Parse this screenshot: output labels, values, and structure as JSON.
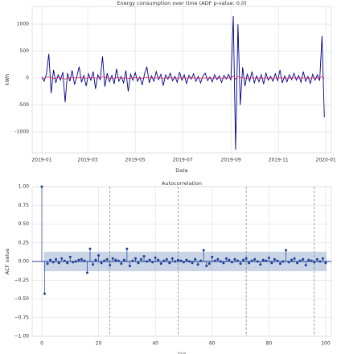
{
  "chart_data": [
    {
      "type": "line",
      "title": "Energy consumption over time (ADF p-value: 0.0)",
      "xlabel": "Date",
      "ylabel": "kWh",
      "grid": true,
      "xlim": [
        -12.4,
        372
      ],
      "ylim": [
        -1390,
        1330
      ],
      "xticks": [
        {
          "value": 0,
          "label": "2019-01"
        },
        {
          "value": 59,
          "label": "2019-03"
        },
        {
          "value": 120,
          "label": "2019-05"
        },
        {
          "value": 181,
          "label": "2019-07"
        },
        {
          "value": 243,
          "label": "2019-09"
        },
        {
          "value": 304,
          "label": "2019-11"
        },
        {
          "value": 365,
          "label": "2020-01"
        }
      ],
      "yticks": [
        -1000,
        -500,
        0,
        500,
        1000
      ],
      "x": [
        0,
        3,
        6,
        9,
        12,
        15,
        18,
        21,
        24,
        27,
        30,
        33,
        36,
        39,
        42,
        45,
        48,
        51,
        54,
        57,
        60,
        63,
        66,
        69,
        72,
        75,
        78,
        81,
        84,
        87,
        90,
        93,
        96,
        99,
        102,
        105,
        108,
        111,
        114,
        117,
        120,
        123,
        126,
        129,
        132,
        135,
        138,
        141,
        144,
        147,
        150,
        153,
        156,
        159,
        162,
        165,
        168,
        171,
        174,
        177,
        180,
        183,
        186,
        189,
        192,
        195,
        198,
        201,
        204,
        207,
        210,
        213,
        216,
        219,
        222,
        225,
        228,
        231,
        234,
        237,
        240,
        243,
        246,
        249,
        252,
        255,
        258,
        261,
        264,
        267,
        270,
        273,
        276,
        279,
        282,
        285,
        288,
        291,
        294,
        297,
        300,
        303,
        306,
        309,
        312,
        315,
        318,
        321,
        324,
        327,
        330,
        333,
        336,
        339,
        342,
        345,
        348,
        351,
        354,
        357,
        360,
        363
      ],
      "series": [
        {
          "color": "#00008b",
          "values": [
            20,
            -60,
            80,
            450,
            -280,
            150,
            -90,
            60,
            -40,
            110,
            -450,
            90,
            -60,
            140,
            -120,
            30,
            210,
            -80,
            50,
            -150,
            80,
            -40,
            120,
            -200,
            60,
            -30,
            400,
            -160,
            90,
            -70,
            50,
            -110,
            170,
            -60,
            30,
            -90,
            140,
            -250,
            70,
            -40,
            100,
            -60,
            20,
            -130,
            80,
            210,
            -90,
            40,
            -60,
            120,
            -30,
            70,
            -140,
            60,
            -20,
            90,
            -50,
            30,
            -80,
            110,
            -40,
            60,
            -100,
            50,
            -20,
            80,
            -60,
            30,
            -90,
            40,
            90,
            -50,
            20,
            -70,
            60,
            -30,
            40,
            -80,
            50,
            -20,
            70,
            -40,
            1150,
            -1330,
            1000,
            -500,
            200,
            -150,
            80,
            -60,
            120,
            -90,
            40,
            -70,
            60,
            -110,
            90,
            -40,
            30,
            -60,
            80,
            -50,
            150,
            -90,
            40,
            -70,
            60,
            -30,
            90,
            -40,
            50,
            -80,
            120,
            -60,
            30,
            -100,
            70,
            -40,
            60,
            -50,
            780,
            -730
          ]
        },
        {
          "color": "#e0245e",
          "values": [
            10,
            -5,
            15,
            20,
            5,
            -10,
            0,
            12,
            8,
            -6,
            -20,
            -8,
            4,
            10,
            6,
            -4,
            12,
            8,
            2,
            -6,
            4,
            6,
            10,
            -2,
            0,
            8,
            22,
            14,
            6,
            -2,
            0,
            -6,
            8,
            4,
            2,
            -4,
            6,
            -8,
            -4,
            2,
            6,
            4,
            0,
            -6,
            4,
            12,
            6,
            2,
            -2,
            6,
            4,
            2,
            -4,
            0,
            2,
            6,
            2,
            0,
            -4,
            4,
            2,
            4,
            -2,
            0,
            2,
            4,
            0,
            2,
            -2,
            0,
            4,
            2,
            0,
            -2,
            2,
            0,
            2,
            -2,
            0,
            2,
            4,
            -2,
            40,
            -20,
            30,
            10,
            6,
            -4,
            0,
            -2,
            4,
            0,
            2,
            -2,
            2,
            -4,
            2,
            0,
            2,
            -2,
            2,
            0,
            6,
            2,
            0,
            -2,
            2,
            0,
            4,
            -2,
            2,
            -2,
            4,
            0,
            2,
            -4,
            2,
            0,
            2,
            -2,
            30,
            -10
          ]
        }
      ]
    },
    {
      "type": "stem",
      "title": "Autocorrelation",
      "xlabel": "lag",
      "ylabel": "ACF value",
      "grid": true,
      "color": "#1c3f94",
      "conf": 0.13,
      "vlines": [
        24,
        48,
        72,
        96
      ],
      "xlim": [
        -3.4,
        102
      ],
      "ylim": [
        -1,
        1
      ],
      "xticks": [
        0,
        20,
        40,
        60,
        80,
        100
      ],
      "yticks": [
        {
          "value": -1,
          "label": "−1.00"
        },
        {
          "value": -0.75,
          "label": "−0.75"
        },
        {
          "value": -0.5,
          "label": "−0.50"
        },
        {
          "value": -0.25,
          "label": "−0.25"
        },
        {
          "value": 0,
          "label": "0.00"
        },
        {
          "value": 0.25,
          "label": "0.25"
        },
        {
          "value": 0.5,
          "label": "0.50"
        },
        {
          "value": 0.75,
          "label": "0.75"
        },
        {
          "value": 1,
          "label": "1.00"
        }
      ],
      "values": [
        1,
        -0.43,
        -0.03,
        0.02,
        -0.01,
        0.03,
        -0.02,
        0.04,
        0.01,
        -0.02,
        0.06,
        -0.01,
        0.0,
        0.02,
        0.03,
        0.01,
        -0.15,
        0.17,
        -0.04,
        0.02,
        0.08,
        -0.02,
        0.01,
        0.03,
        -0.05,
        0.04,
        0.02,
        0.01,
        -0.03,
        0.02,
        0.17,
        -0.06,
        0.01,
        0.04,
        -0.02,
        0.03,
        0.07,
        0.0,
        0.02,
        -0.01,
        0.05,
        0.02,
        -0.03,
        0.01,
        0.03,
        -0.02,
        0.04,
        0.0,
        0.02,
        0.01,
        -0.01,
        0.02,
        0.0,
        -0.02,
        0.03,
        -0.04,
        0.01,
        0.15,
        -0.06,
        -0.03,
        0.06,
        0.01,
        0.03,
        0.0,
        -0.02,
        0.04,
        0.02,
        -0.01,
        0.03,
        0.01,
        -0.03,
        0.02,
        0.04,
        -0.02,
        0.01,
        0.03,
        0.0,
        -0.04,
        0.02,
        0.01,
        0.05,
        -0.02,
        0.03,
        0.01,
        -0.03,
        0.0,
        0.15,
        -0.01,
        0.02,
        0.04,
        -0.02,
        0.01,
        0.03,
        -0.05,
        0.02,
        0.01,
        -0.01,
        0.03,
        0.0,
        0.04,
        -0.02
      ]
    }
  ]
}
